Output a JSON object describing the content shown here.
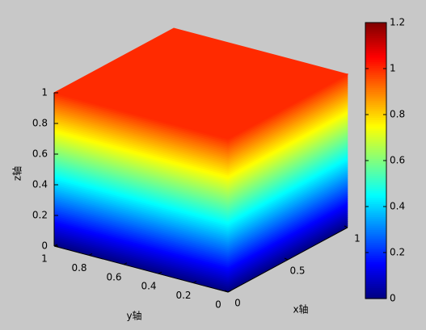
{
  "chart_data": {
    "type": "surface3d",
    "colormap": "jet",
    "xlabel": "x轴",
    "ylabel": "y轴",
    "zlabel": "z轴",
    "xlim": [
      0,
      1
    ],
    "xticks": [
      0,
      0.5,
      1
    ],
    "ylim": [
      0,
      1
    ],
    "yticks": [
      0,
      0.2,
      0.4,
      0.6,
      0.8,
      1
    ],
    "zlim": [
      0,
      1
    ],
    "zticks": [
      0,
      0.2,
      0.4,
      0.6,
      0.8,
      1
    ],
    "colorbar": {
      "clim": [
        0,
        1.2
      ],
      "ticks": [
        0,
        0.2,
        0.4,
        0.6,
        0.8,
        1,
        1.2
      ]
    }
  }
}
